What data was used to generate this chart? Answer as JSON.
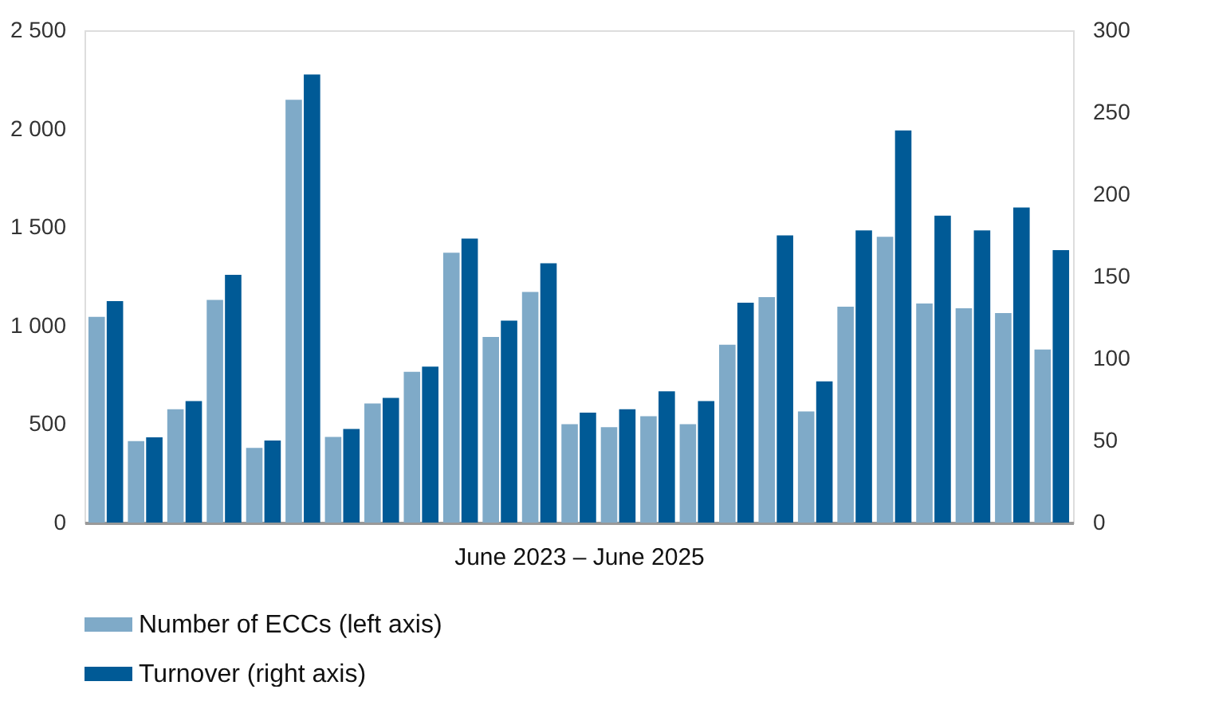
{
  "chart_data": {
    "type": "bar",
    "xlabel": "June 2023 – June 2025",
    "categories": [
      null,
      null,
      null,
      null,
      null,
      null,
      null,
      null,
      null,
      null,
      null,
      null,
      null,
      null,
      null,
      null,
      null,
      null,
      null,
      null,
      null,
      null,
      null,
      null,
      null
    ],
    "series": [
      {
        "name": "Number of ECCs (left axis)",
        "color": "#7faac8",
        "values": [
          1045,
          414,
          575,
          1131,
          379,
          2147,
          435,
          605,
          766,
          1370,
          943,
          1171,
          500,
          484,
          540,
          500,
          903,
          1145,
          564,
          1096,
          1451,
          1112,
          1088,
          1064,
          879
        ]
      },
      {
        "name": "Turnover (right axis)",
        "color": "#005a96",
        "axis": "y2",
        "values": [
          135,
          52,
          74,
          151,
          50,
          273,
          57,
          76,
          95,
          173,
          123,
          158,
          67,
          69,
          80,
          74,
          134,
          175,
          86,
          178,
          239,
          187,
          178,
          192,
          166
        ]
      }
    ],
    "ylim": [
      0,
      2500
    ],
    "yticks": [
      {
        "value": 0,
        "label": "0"
      },
      {
        "value": 500,
        "label": "500"
      },
      {
        "value": 1000,
        "label": "1 000"
      },
      {
        "value": 1500,
        "label": "1 500"
      },
      {
        "value": 2000,
        "label": "2 000"
      },
      {
        "value": 2500,
        "label": "2 500"
      }
    ],
    "y2lim": [
      0,
      300
    ],
    "y2ticks": [
      0,
      50,
      100,
      150,
      200,
      250,
      300
    ],
    "grid": false,
    "legend": "bottom left"
  }
}
